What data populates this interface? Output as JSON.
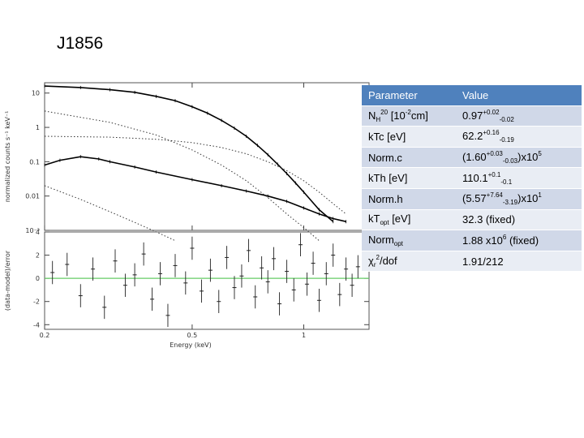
{
  "slide": {
    "title": "J1856"
  },
  "table": {
    "header": [
      "Parameter",
      "Value"
    ],
    "rows": [
      {
        "name": {
          "base": "N",
          "sub": "H",
          "rest": " [10",
          "sup": "20",
          "tail": "cm",
          "sup2": "-2",
          "end": "]"
        },
        "value": {
          "base": "0.97",
          "sup": "+0.02",
          "sub": "-0.02"
        }
      },
      {
        "name": {
          "base": "kTc [eV]"
        },
        "value": {
          "base": "62.2",
          "sup": "+0.16",
          "sub": "-0.19"
        }
      },
      {
        "name": {
          "base": "Norm.c"
        },
        "value": {
          "pre": "(1.60",
          "sup": "+0.03",
          "sub": "-0.03",
          "post": ")x10",
          "sup2": "5"
        }
      },
      {
        "name": {
          "base": "kTh [eV]"
        },
        "value": {
          "base": "110.1",
          "sup": "+0.1",
          "sub": "-0.1"
        }
      },
      {
        "name": {
          "base": "Norm.h"
        },
        "value": {
          "pre": "(5.57",
          "sup": "+7.64",
          "sub": "-3.19",
          "post": ")x10",
          "sup2": "1"
        }
      },
      {
        "name": {
          "base": "kT",
          "sub": "opt",
          "rest": " [eV]"
        },
        "value": {
          "base": "32.3 (fixed)"
        }
      },
      {
        "name": {
          "base": "Norm",
          "sub": "opt"
        },
        "value": {
          "base": "1.88 x10",
          "sup": "6",
          "post": " (fixed)"
        }
      },
      {
        "name": {
          "base": "χ",
          "sup": "2",
          "sub": "r",
          "rest": "/dof"
        },
        "value": {
          "base": "1.91/212"
        }
      }
    ]
  },
  "chart_data": [
    {
      "type": "line",
      "panel": "spectrum",
      "ylabel": "normalized counts s⁻¹ keV⁻¹",
      "y_scale": "log",
      "ylim": [
        0.001,
        20
      ],
      "xlim": [
        0.2,
        1.5
      ],
      "x_scale": "log",
      "yticks": [
        10,
        1,
        0.1,
        0.01,
        0.001
      ],
      "ytick_labels": [
        "10",
        "1",
        "0.1",
        "0.01",
        "10⁻³"
      ],
      "series": [
        {
          "style": "data",
          "color": "#000000",
          "x": [
            0.2,
            0.25,
            0.3,
            0.35,
            0.4,
            0.45,
            0.5,
            0.55,
            0.6,
            0.65,
            0.7,
            0.75,
            0.8,
            0.85,
            0.9,
            0.95,
            1.0,
            1.1,
            1.2
          ],
          "y": [
            16,
            14.5,
            12.5,
            10.5,
            8,
            6,
            4,
            2.6,
            1.6,
            0.95,
            0.55,
            0.3,
            0.16,
            0.085,
            0.045,
            0.024,
            0.013,
            0.004,
            0.0018
          ]
        },
        {
          "style": "data",
          "color": "#000000",
          "x": [
            0.2,
            0.22,
            0.25,
            0.28,
            0.3,
            0.35,
            0.4,
            0.5,
            0.6,
            0.7,
            0.8,
            0.9,
            1.0,
            1.1,
            1.2,
            1.3
          ],
          "y": [
            0.08,
            0.11,
            0.14,
            0.12,
            0.1,
            0.07,
            0.05,
            0.03,
            0.02,
            0.014,
            0.01,
            0.007,
            0.0045,
            0.003,
            0.0022,
            0.0018
          ]
        },
        {
          "style": "dotted",
          "color": "#333333",
          "x": [
            0.2,
            0.3,
            0.4,
            0.5,
            0.6,
            0.7,
            0.8,
            0.9,
            1.0,
            1.1
          ],
          "y": [
            3,
            1.4,
            0.6,
            0.22,
            0.08,
            0.028,
            0.009,
            0.003,
            0.0012,
            0.0005
          ]
        },
        {
          "style": "dotted",
          "color": "#333333",
          "x": [
            0.2,
            0.3,
            0.4,
            0.5,
            0.6,
            0.7,
            0.8,
            0.9,
            1.0,
            1.1,
            1.2,
            1.3
          ],
          "y": [
            0.55,
            0.52,
            0.45,
            0.36,
            0.26,
            0.17,
            0.1,
            0.055,
            0.028,
            0.013,
            0.006,
            0.003
          ]
        },
        {
          "style": "dotted",
          "color": "#333333",
          "x": [
            0.2,
            0.25,
            0.3,
            0.35,
            0.4,
            0.45
          ],
          "y": [
            0.02,
            0.008,
            0.0035,
            0.0017,
            0.0009,
            0.0005
          ]
        }
      ]
    },
    {
      "type": "scatter",
      "panel": "residuals",
      "ylabel": "(data-model)/error",
      "xlabel": "Energy (keV)",
      "xlim": [
        0.2,
        1.5
      ],
      "x_scale": "log",
      "ylim": [
        -4.4,
        4.0
      ],
      "yticks": [
        4,
        2,
        0,
        -2,
        -4
      ],
      "ytick_labels": [
        "4",
        "2",
        "0",
        "-2",
        "-4"
      ],
      "xticks": [
        0.2,
        0.5,
        1
      ],
      "xtick_labels": [
        "0.2",
        "0.5",
        "1"
      ],
      "zero_line_color": "#66cc66",
      "x": [
        0.21,
        0.23,
        0.25,
        0.27,
        0.29,
        0.31,
        0.33,
        0.35,
        0.37,
        0.39,
        0.41,
        0.43,
        0.45,
        0.48,
        0.5,
        0.53,
        0.56,
        0.59,
        0.62,
        0.65,
        0.68,
        0.71,
        0.74,
        0.77,
        0.8,
        0.83,
        0.86,
        0.9,
        0.94,
        0.98,
        1.02,
        1.06,
        1.1,
        1.15,
        1.2,
        1.25,
        1.3,
        1.35,
        1.4
      ],
      "y": [
        0.5,
        1.2,
        -1.5,
        0.8,
        -2.5,
        1.5,
        -0.6,
        0.3,
        2.1,
        -1.8,
        0.4,
        -3.2,
        1.1,
        -0.4,
        2.6,
        -1.1,
        0.7,
        -2.0,
        1.8,
        -0.8,
        0.2,
        2.4,
        -1.6,
        0.9,
        -0.3,
        1.7,
        -2.2,
        0.6,
        -1.0,
        2.9,
        -0.5,
        1.3,
        -1.9,
        0.4,
        2.0,
        -1.4,
        0.8,
        -0.6,
        1.0
      ],
      "err": [
        1.0,
        1.0,
        1.0,
        1.0,
        1.0,
        1.0,
        1.0,
        1.0,
        1.0,
        1.0,
        1.0,
        1.0,
        1.0,
        1.0,
        1.0,
        1.0,
        1.0,
        1.0,
        1.0,
        1.0,
        1.0,
        1.0,
        1.0,
        1.0,
        1.0,
        1.0,
        1.0,
        1.0,
        1.0,
        1.0,
        1.0,
        1.0,
        1.0,
        1.0,
        1.0,
        1.0,
        1.0,
        1.0,
        1.0
      ]
    }
  ]
}
